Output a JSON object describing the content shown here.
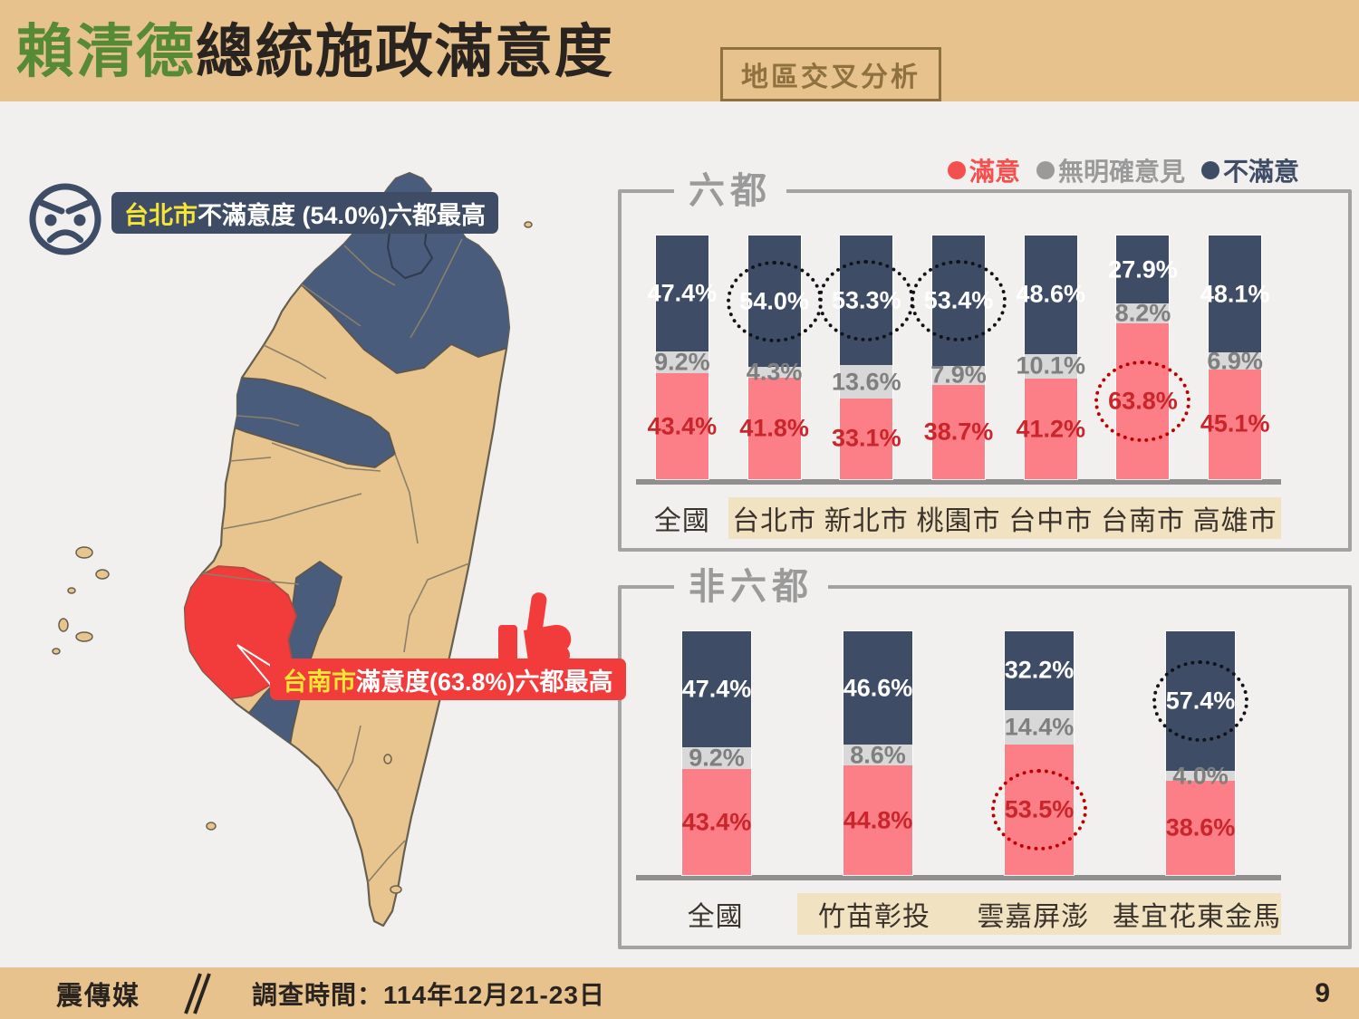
{
  "colors": {
    "page-bg": "#f1f0ee",
    "tan": "#e7c28d",
    "green": "#568a35",
    "dark": "#29241f",
    "brown": "#8f713f",
    "navy": "#3e4c66",
    "map-blue": "#4a5c7c",
    "pink": "#fc7f87",
    "gray-seg": "#d8d8d8",
    "gray-text": "#7f7f7f",
    "red-text": "#c9252b",
    "red": "#f23b3b",
    "yellow": "#f5e636",
    "strip": "#f1e3c2",
    "box-border": "#a3a3a3"
  },
  "header": {
    "title_green": "賴清德",
    "title_rest": "總統施政滿意度",
    "tag": "地區交叉分析"
  },
  "legend": [
    {
      "label": "滿意"
    },
    {
      "label": "無明確意見"
    },
    {
      "label": "不滿意"
    }
  ],
  "map": {
    "angry_callout": {
      "city": "台北市",
      "text": "不滿意度 (54.0%)六都最高"
    },
    "thumb_callout": {
      "city": "台南市",
      "text": "滿意度(63.8%)六都最高"
    }
  },
  "chart_data": [
    {
      "type": "bar",
      "stacked": true,
      "title": "六都",
      "categories": [
        "全國",
        "台北市",
        "新北市",
        "桃園市",
        "台中市",
        "台南市",
        "高雄市"
      ],
      "series": [
        {
          "name": "滿意",
          "color": "pink",
          "values": [
            43.4,
            41.8,
            33.1,
            38.7,
            41.2,
            63.8,
            45.1
          ]
        },
        {
          "name": "無明確意見",
          "color": "gray",
          "values": [
            9.2,
            4.3,
            13.6,
            7.9,
            10.1,
            8.2,
            6.9
          ]
        },
        {
          "name": "不滿意",
          "color": "navy",
          "values": [
            47.4,
            54.0,
            53.3,
            53.4,
            48.6,
            27.9,
            48.1
          ]
        }
      ],
      "circled": [
        {
          "category": "台北市",
          "series": "不滿意",
          "style": "black"
        },
        {
          "category": "新北市",
          "series": "不滿意",
          "style": "black"
        },
        {
          "category": "桃園市",
          "series": "不滿意",
          "style": "black"
        },
        {
          "category": "台南市",
          "series": "滿意",
          "style": "red"
        }
      ],
      "highlighted_categories": [
        "台北市",
        "新北市",
        "桃園市",
        "台中市",
        "台南市",
        "高雄市"
      ],
      "ylim": [
        0,
        100
      ],
      "legend_position": "top-right"
    },
    {
      "type": "bar",
      "stacked": true,
      "title": "非六都",
      "categories": [
        "全國",
        "竹苗彰投",
        "雲嘉屏澎",
        "基宜花東金馬"
      ],
      "series": [
        {
          "name": "滿意",
          "color": "pink",
          "values": [
            43.4,
            44.8,
            53.5,
            38.6
          ]
        },
        {
          "name": "無明確意見",
          "color": "gray",
          "values": [
            9.2,
            8.6,
            14.4,
            4.0
          ]
        },
        {
          "name": "不滿意",
          "color": "navy",
          "values": [
            47.4,
            46.6,
            32.2,
            57.4
          ]
        }
      ],
      "circled": [
        {
          "category": "雲嘉屏澎",
          "series": "滿意",
          "style": "red"
        },
        {
          "category": "基宜花東金馬",
          "series": "不滿意",
          "style": "black"
        }
      ],
      "highlighted_categories": [
        "竹苗彰投",
        "雲嘉屏澎",
        "基宜花東金馬"
      ],
      "ylim": [
        0,
        100
      ]
    }
  ],
  "footer": {
    "brand": "震傳媒",
    "survey_label": "調查時間：114年12月21-23日",
    "page_number": "9"
  }
}
